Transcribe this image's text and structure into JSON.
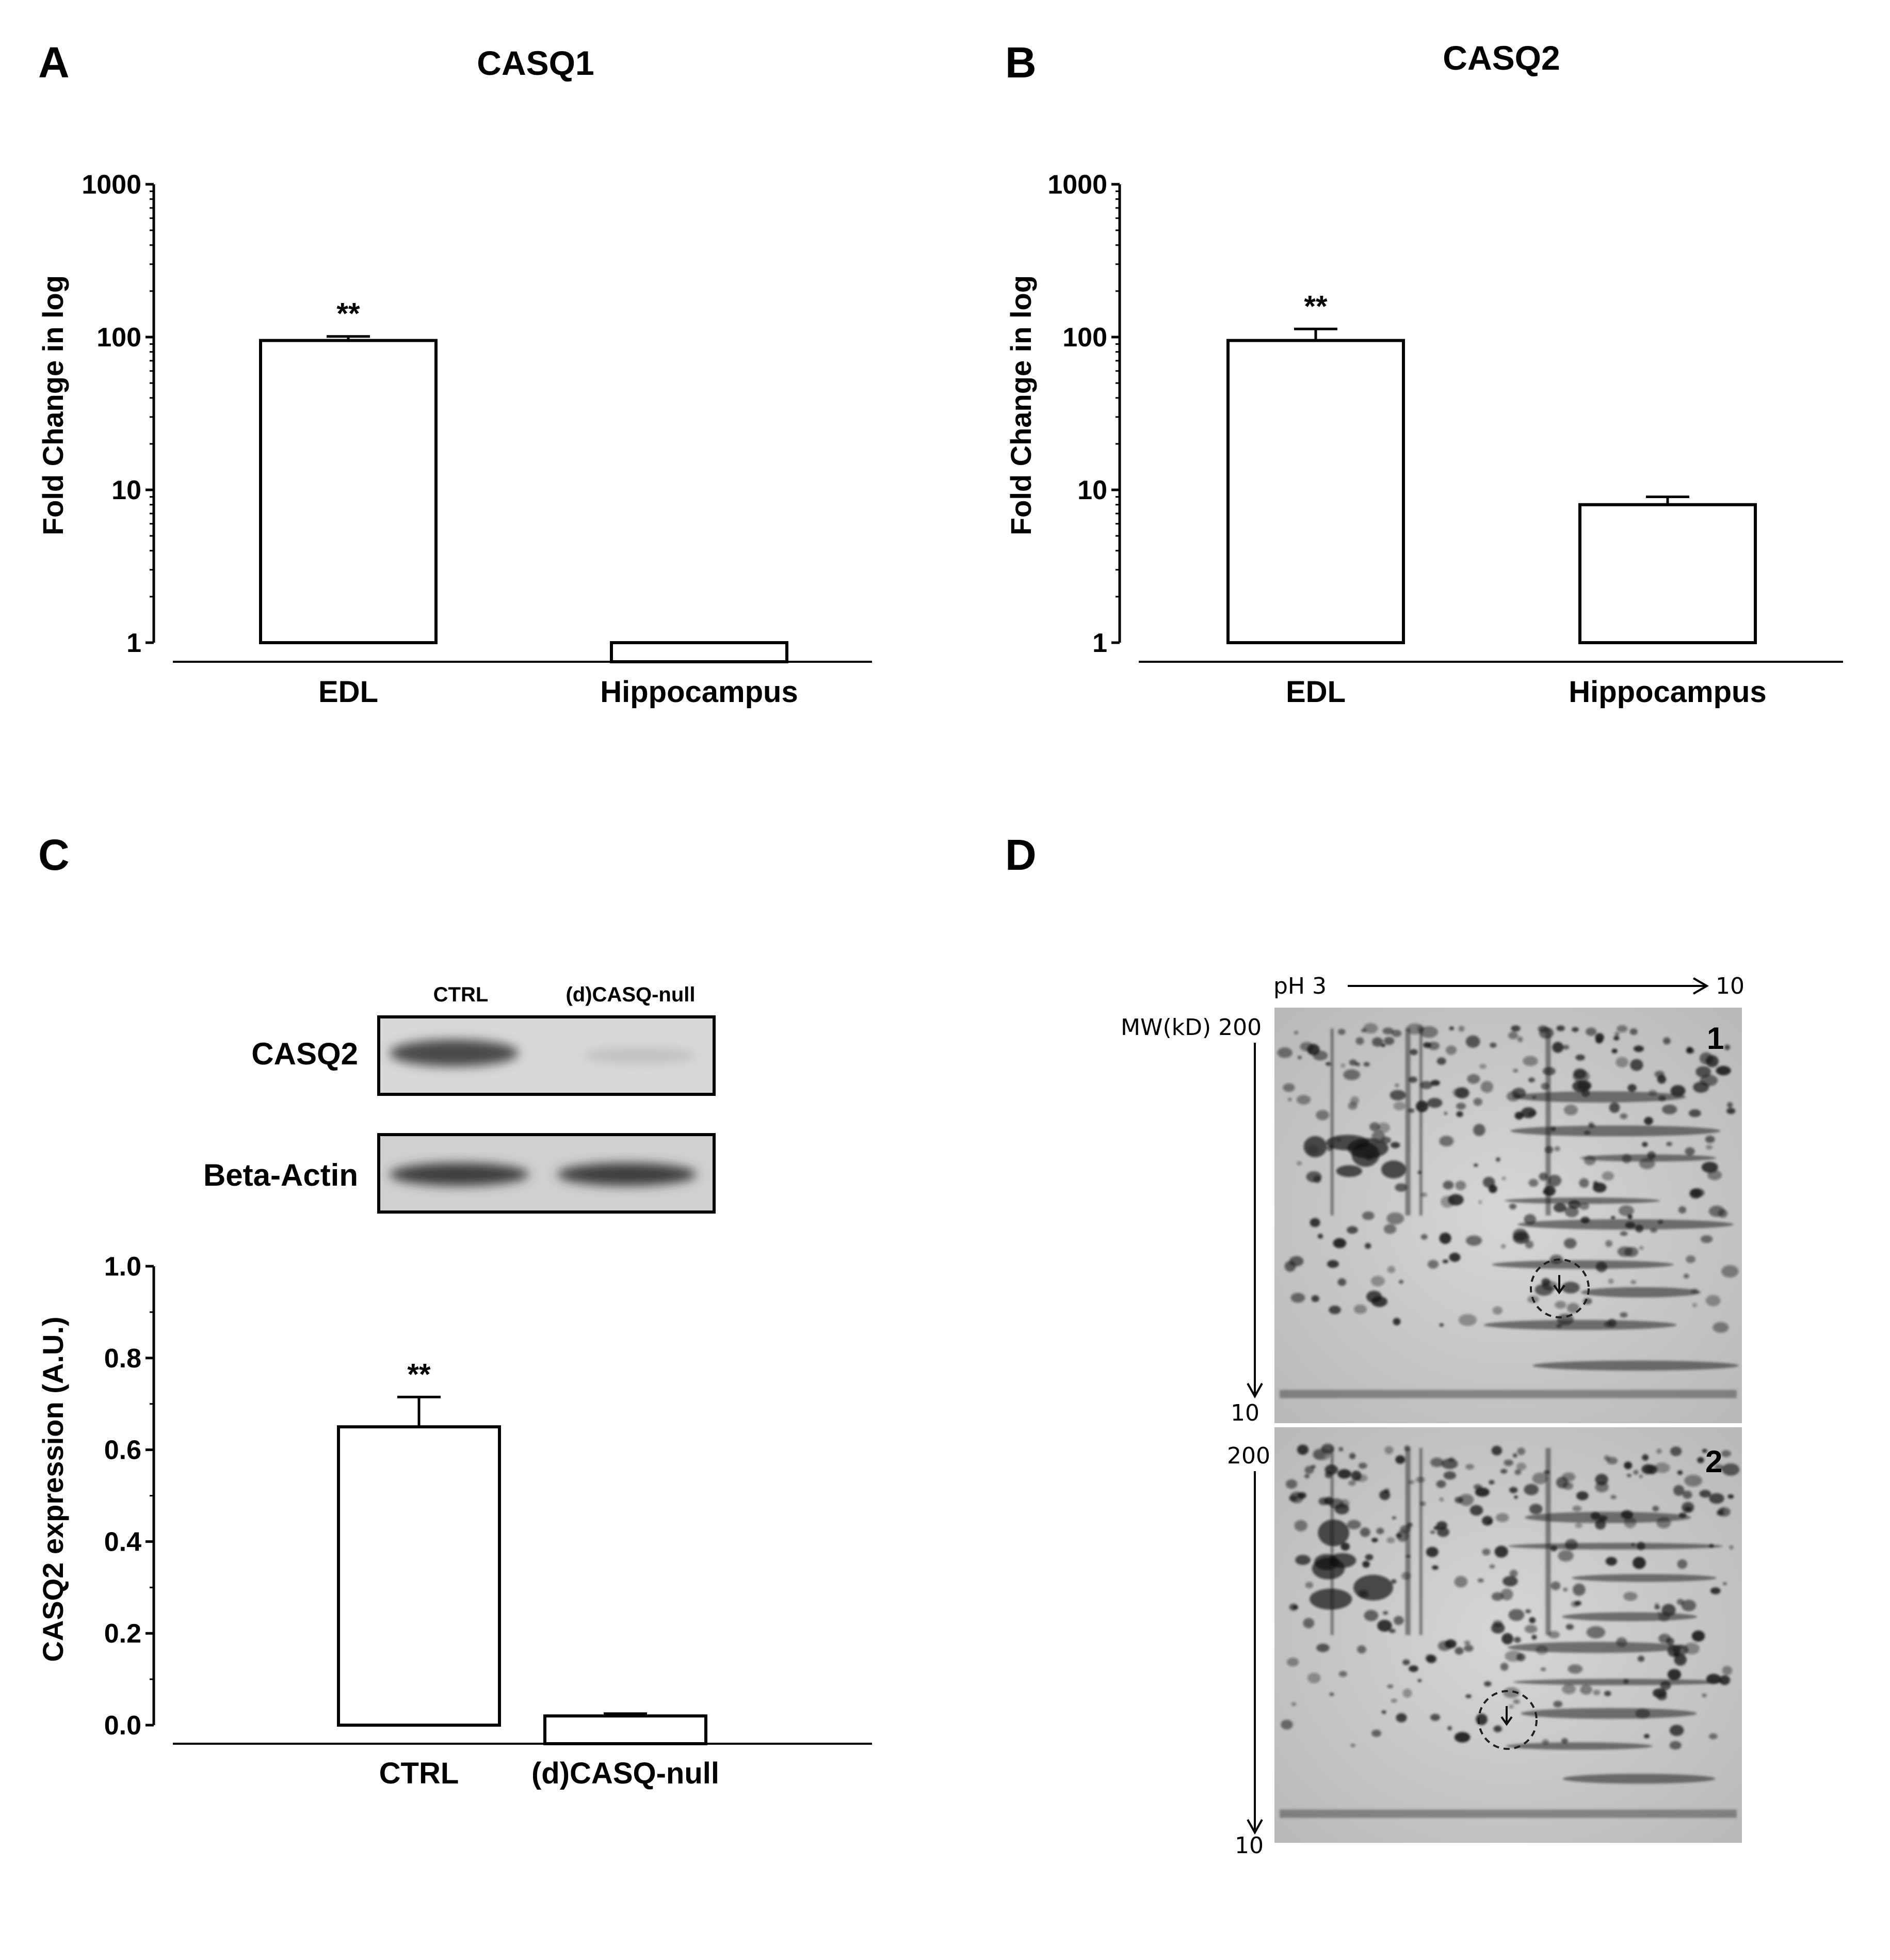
{
  "panels": {
    "A": {
      "letter": "A"
    },
    "B": {
      "letter": "B"
    },
    "C": {
      "letter": "C"
    },
    "D": {
      "letter": "D"
    }
  },
  "chart_data": [
    {
      "type": "bar",
      "panel": "A",
      "title": "CASQ1",
      "ylabel": "Fold Change in log",
      "yscale": "log",
      "ylim": [
        1,
        1000
      ],
      "yticks": [
        "1",
        "10",
        "100",
        "1000"
      ],
      "categories": [
        "EDL",
        "Hippocampus"
      ],
      "values": [
        95,
        1
      ],
      "errors": [
        6,
        0
      ],
      "annotations": [
        "**",
        ""
      ],
      "grid": false
    },
    {
      "type": "bar",
      "panel": "B",
      "title": "CASQ2",
      "ylabel": "Fold Change in log",
      "yscale": "log",
      "ylim": [
        1,
        1000
      ],
      "yticks": [
        "1",
        "10",
        "100",
        "1000"
      ],
      "categories": [
        "EDL",
        "Hippocampus"
      ],
      "values": [
        95,
        8
      ],
      "errors": [
        18,
        1
      ],
      "annotations": [
        "**",
        ""
      ],
      "grid": false
    },
    {
      "type": "bar",
      "panel": "C",
      "title": "",
      "ylabel": "CASQ2 expression (A.U.)",
      "yscale": "linear",
      "ylim": [
        0,
        1.0
      ],
      "yticks": [
        "0.0",
        "0.2",
        "0.4",
        "0.6",
        "0.8",
        "1.0"
      ],
      "categories": [
        "CTRL",
        "(d)CASQ-null"
      ],
      "values": [
        0.65,
        0.02
      ],
      "errors": [
        0.065,
        0.005
      ],
      "annotations": [
        "**",
        ""
      ],
      "grid": false
    }
  ],
  "blot": {
    "columns": [
      "CTRL",
      "(d)CASQ-null"
    ],
    "rows": [
      "CASQ2",
      "Beta-Actin"
    ]
  },
  "gels": {
    "ph_label": "pH 3",
    "ph_end": "10",
    "mw_label": "MW(kD) 200",
    "mw_top_2": "200",
    "mw_bottom_1": "10",
    "mw_bottom_2": "10",
    "gel_labels": [
      "1",
      "2"
    ]
  }
}
